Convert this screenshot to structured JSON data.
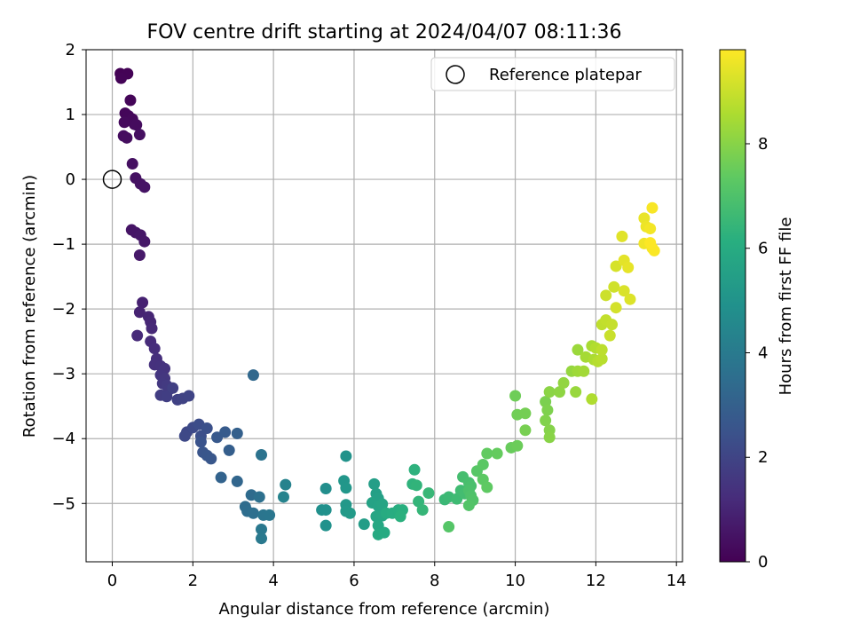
{
  "chart_data": {
    "type": "scatter",
    "title": "FOV centre drift starting at 2024/04/07 08:11:36",
    "xlabel": "Angular distance from reference (arcmin)",
    "ylabel": "Rotation from reference (arcmin)",
    "xlim": [
      -0.65,
      14.15
    ],
    "ylim": [
      -5.9,
      2.0
    ],
    "xticks": [
      0,
      2,
      4,
      6,
      8,
      10,
      12,
      14
    ],
    "yticks": [
      2,
      1,
      0,
      -1,
      -2,
      -3,
      -4,
      -5
    ],
    "grid": true,
    "legend": {
      "location": "upper right",
      "entries": [
        {
          "label": "Reference platepar",
          "marker": "open-circle",
          "color": "#000000"
        }
      ]
    },
    "reference_point": {
      "x": 0,
      "y": 0
    },
    "colorbar": {
      "label": "Hours from first FF file",
      "min": 0,
      "max": 9.8,
      "ticks": [
        0,
        2,
        4,
        6,
        8
      ],
      "colormap": "viridis"
    },
    "points": [
      [
        0.2,
        1.63,
        0.02
      ],
      [
        0.38,
        1.63,
        0.05
      ],
      [
        0.22,
        1.56,
        0.08
      ],
      [
        0.45,
        1.22,
        0.12
      ],
      [
        0.32,
        1.02,
        0.15
      ],
      [
        0.4,
        0.98,
        0.18
      ],
      [
        0.5,
        0.93,
        0.21
      ],
      [
        0.3,
        0.88,
        0.24
      ],
      [
        0.55,
        0.85,
        0.27
      ],
      [
        0.6,
        0.84,
        0.3
      ],
      [
        0.28,
        0.67,
        0.33
      ],
      [
        0.36,
        0.64,
        0.36
      ],
      [
        0.68,
        0.69,
        0.39
      ],
      [
        0.5,
        0.24,
        0.42
      ],
      [
        0.58,
        0.02,
        0.45
      ],
      [
        0.7,
        -0.07,
        0.48
      ],
      [
        0.8,
        -0.12,
        0.51
      ],
      [
        0.48,
        -0.78,
        0.54
      ],
      [
        0.58,
        -0.82,
        0.57
      ],
      [
        0.7,
        -0.86,
        0.6
      ],
      [
        0.8,
        -0.96,
        0.63
      ],
      [
        0.68,
        -1.17,
        0.66
      ],
      [
        0.75,
        -1.9,
        0.9
      ],
      [
        0.68,
        -2.05,
        0.95
      ],
      [
        0.9,
        -2.12,
        1.0
      ],
      [
        0.95,
        -2.2,
        1.05
      ],
      [
        0.98,
        -2.3,
        1.1
      ],
      [
        0.62,
        -2.41,
        1.15
      ],
      [
        0.95,
        -2.5,
        1.2
      ],
      [
        1.05,
        -2.61,
        1.25
      ],
      [
        1.1,
        -2.77,
        1.3
      ],
      [
        1.05,
        -2.86,
        1.35
      ],
      [
        1.2,
        -2.88,
        1.4
      ],
      [
        1.3,
        -2.92,
        1.45
      ],
      [
        1.2,
        -3.02,
        1.5
      ],
      [
        1.3,
        -3.07,
        1.55
      ],
      [
        1.25,
        -3.15,
        1.6
      ],
      [
        1.35,
        -3.18,
        1.65
      ],
      [
        1.4,
        -3.25,
        1.7
      ],
      [
        1.2,
        -3.33,
        1.75
      ],
      [
        1.35,
        -3.35,
        1.8
      ],
      [
        1.5,
        -3.22,
        1.85
      ],
      [
        1.62,
        -3.4,
        1.9
      ],
      [
        1.75,
        -3.38,
        1.95
      ],
      [
        1.9,
        -3.34,
        2.0
      ],
      [
        1.85,
        -3.9,
        2.1
      ],
      [
        1.8,
        -3.96,
        2.15
      ],
      [
        2.0,
        -3.83,
        2.2
      ],
      [
        2.15,
        -3.78,
        2.3
      ],
      [
        2.2,
        -3.96,
        2.35
      ],
      [
        2.35,
        -3.84,
        2.4
      ],
      [
        2.2,
        -4.05,
        2.5
      ],
      [
        2.25,
        -4.21,
        2.55
      ],
      [
        2.35,
        -4.26,
        2.6
      ],
      [
        2.45,
        -4.31,
        2.65
      ],
      [
        2.6,
        -3.98,
        2.7
      ],
      [
        2.8,
        -3.9,
        2.8
      ],
      [
        2.9,
        -4.18,
        2.9
      ],
      [
        3.1,
        -3.92,
        3.0
      ],
      [
        2.7,
        -4.6,
        3.1
      ],
      [
        3.1,
        -4.66,
        3.2
      ],
      [
        3.5,
        -3.02,
        3.3
      ],
      [
        3.45,
        -4.87,
        3.4
      ],
      [
        3.3,
        -5.05,
        3.45
      ],
      [
        3.35,
        -5.12,
        3.5
      ],
      [
        3.5,
        -5.15,
        3.55
      ],
      [
        3.65,
        -4.9,
        3.6
      ],
      [
        3.7,
        -4.25,
        3.7
      ],
      [
        3.75,
        -5.18,
        3.8
      ],
      [
        3.9,
        -5.18,
        3.85
      ],
      [
        3.7,
        -5.4,
        3.9
      ],
      [
        3.7,
        -5.54,
        3.95
      ],
      [
        4.3,
        -4.71,
        4.3
      ],
      [
        4.25,
        -4.9,
        4.35
      ],
      [
        5.3,
        -4.77,
        4.8
      ],
      [
        5.2,
        -5.1,
        4.85
      ],
      [
        5.3,
        -5.1,
        4.9
      ],
      [
        5.3,
        -5.34,
        4.95
      ],
      [
        5.8,
        -4.27,
        5.0
      ],
      [
        5.75,
        -4.65,
        5.1
      ],
      [
        5.8,
        -4.76,
        5.15
      ],
      [
        5.8,
        -5.02,
        5.2
      ],
      [
        5.8,
        -5.12,
        5.25
      ],
      [
        5.9,
        -5.15,
        5.3
      ],
      [
        6.25,
        -5.32,
        5.4
      ],
      [
        6.5,
        -4.7,
        5.45
      ],
      [
        6.55,
        -4.85,
        5.5
      ],
      [
        6.6,
        -4.92,
        5.55
      ],
      [
        6.45,
        -4.99,
        5.6
      ],
      [
        6.6,
        -5.04,
        5.65
      ],
      [
        6.7,
        -5.01,
        5.7
      ],
      [
        6.55,
        -5.2,
        5.75
      ],
      [
        6.7,
        -5.19,
        5.8
      ],
      [
        6.6,
        -5.34,
        5.85
      ],
      [
        6.6,
        -5.48,
        5.9
      ],
      [
        6.75,
        -5.45,
        5.95
      ],
      [
        6.8,
        -5.15,
        6.0
      ],
      [
        6.95,
        -5.15,
        6.05
      ],
      [
        7.1,
        -5.1,
        6.1
      ],
      [
        7.2,
        -5.1,
        6.15
      ],
      [
        7.15,
        -5.2,
        6.2
      ],
      [
        7.5,
        -4.48,
        6.25
      ],
      [
        7.45,
        -4.7,
        6.3
      ],
      [
        7.55,
        -4.72,
        6.35
      ],
      [
        7.6,
        -4.97,
        6.4
      ],
      [
        7.7,
        -5.1,
        6.45
      ],
      [
        7.85,
        -4.84,
        6.5
      ],
      [
        8.25,
        -4.94,
        6.55
      ],
      [
        8.35,
        -4.9,
        6.6
      ],
      [
        8.55,
        -4.93,
        6.65
      ],
      [
        8.65,
        -4.8,
        6.7
      ],
      [
        8.75,
        -4.85,
        6.75
      ],
      [
        8.7,
        -4.59,
        6.8
      ],
      [
        8.85,
        -4.68,
        6.85
      ],
      [
        8.9,
        -4.73,
        6.9
      ],
      [
        8.85,
        -4.8,
        6.95
      ],
      [
        8.9,
        -4.88,
        7.0
      ],
      [
        8.95,
        -4.95,
        7.05
      ],
      [
        8.85,
        -5.03,
        7.1
      ],
      [
        8.35,
        -5.36,
        7.15
      ],
      [
        9.05,
        -4.5,
        7.2
      ],
      [
        9.2,
        -4.4,
        7.25
      ],
      [
        9.2,
        -4.63,
        7.3
      ],
      [
        9.3,
        -4.75,
        7.35
      ],
      [
        9.3,
        -4.23,
        7.4
      ],
      [
        9.55,
        -4.23,
        7.45
      ],
      [
        9.9,
        -4.14,
        7.5
      ],
      [
        10.05,
        -4.11,
        7.55
      ],
      [
        10.0,
        -3.34,
        7.6
      ],
      [
        10.05,
        -3.63,
        7.65
      ],
      [
        10.25,
        -3.61,
        7.7
      ],
      [
        10.25,
        -3.87,
        7.75
      ],
      [
        10.75,
        -3.43,
        7.8
      ],
      [
        10.8,
        -3.56,
        7.85
      ],
      [
        10.75,
        -3.72,
        7.9
      ],
      [
        10.85,
        -3.87,
        7.95
      ],
      [
        10.85,
        -3.98,
        8.0
      ],
      [
        10.85,
        -3.28,
        8.05
      ],
      [
        11.1,
        -3.28,
        8.1
      ],
      [
        11.2,
        -3.14,
        8.15
      ],
      [
        11.4,
        -2.96,
        8.2
      ],
      [
        11.5,
        -3.28,
        8.25
      ],
      [
        11.55,
        -2.63,
        8.3
      ],
      [
        11.55,
        -2.96,
        8.35
      ],
      [
        11.7,
        -2.96,
        8.4
      ],
      [
        11.75,
        -2.74,
        8.45
      ],
      [
        11.9,
        -2.57,
        8.5
      ],
      [
        11.95,
        -2.78,
        8.55
      ],
      [
        11.9,
        -3.39,
        8.6
      ],
      [
        12.0,
        -2.6,
        8.65
      ],
      [
        12.05,
        -2.81,
        8.7
      ],
      [
        12.15,
        -2.77,
        8.75
      ],
      [
        12.15,
        -2.63,
        8.8
      ],
      [
        12.15,
        -2.24,
        8.85
      ],
      [
        12.25,
        -2.17,
        8.9
      ],
      [
        12.4,
        -2.24,
        8.95
      ],
      [
        12.35,
        -2.41,
        9.0
      ],
      [
        12.25,
        -1.79,
        9.05
      ],
      [
        12.45,
        -1.66,
        9.1
      ],
      [
        12.5,
        -1.98,
        9.15
      ],
      [
        12.5,
        -1.34,
        9.2
      ],
      [
        12.7,
        -1.72,
        9.25
      ],
      [
        12.85,
        -1.85,
        9.3
      ],
      [
        12.65,
        -0.88,
        9.35
      ],
      [
        12.7,
        -1.25,
        9.4
      ],
      [
        12.8,
        -1.36,
        9.45
      ],
      [
        13.2,
        -0.6,
        9.5
      ],
      [
        13.25,
        -0.73,
        9.55
      ],
      [
        13.2,
        -0.99,
        9.6
      ],
      [
        13.35,
        -0.76,
        9.65
      ],
      [
        13.4,
        -1.06,
        9.7
      ],
      [
        13.4,
        -0.44,
        9.72
      ],
      [
        13.45,
        -1.1,
        9.75
      ],
      [
        13.35,
        -0.98,
        9.78
      ]
    ]
  }
}
